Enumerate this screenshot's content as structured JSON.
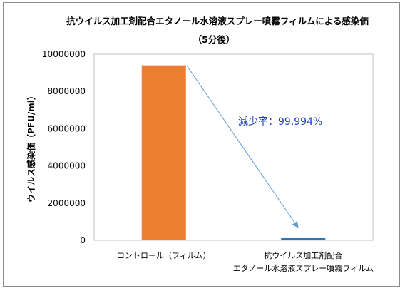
{
  "chart_data": {
    "type": "bar",
    "title": "抗ウイルス加工剤配合エタノール水溶液スプレー噴霧フィルムによる感染価",
    "subtitle": "（5分後）",
    "ylabel": "ウイルス感染価（PFU/ml）",
    "xlabel": "",
    "categories": [
      [
        "コントロール（フィルム）"
      ],
      [
        "抗ウイルス加工剤配合",
        "エタノール水溶液スプレー噴霧フィルム"
      ]
    ],
    "values": [
      9400000,
      560
    ],
    "ylim": [
      0,
      10000000
    ],
    "yticks": [
      0,
      2000000,
      4000000,
      6000000,
      8000000,
      10000000
    ],
    "ytick_labels": [
      "0",
      "2000000",
      "4000000",
      "6000000",
      "8000000",
      "10000000"
    ],
    "grid": false,
    "annotation": "減少率：99.994%",
    "colors": {
      "bars": [
        "#ed7d31",
        "#2e75b6"
      ],
      "arrow": "#5b9bd5",
      "annotation": "#1f3fbf"
    }
  }
}
